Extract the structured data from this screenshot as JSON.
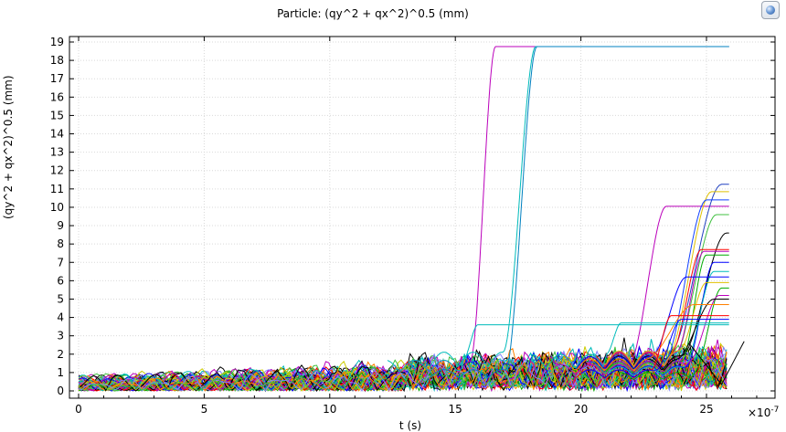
{
  "chart_data": {
    "type": "line",
    "title": "Particle: (qy^2 + qx^2)^0.5 (mm)",
    "xlabel": "t (s)",
    "ylabel": "(qy^2 + qx^2)^0.5 (mm)",
    "x_multiplier_label": "×10",
    "x_multiplier_exponent": "-7",
    "xlim": [
      0,
      27.5
    ],
    "ylim": [
      0,
      19
    ],
    "xticks": [
      0,
      5,
      10,
      15,
      20,
      25
    ],
    "yticks": [
      0,
      1,
      2,
      3,
      4,
      5,
      6,
      7,
      8,
      9,
      10,
      11,
      12,
      13,
      14,
      15,
      16,
      17,
      18,
      19
    ],
    "grid": true,
    "legend": "none",
    "series_count_note": "many particle trajectories",
    "colors": [
      "#0000ff",
      "#00aa00",
      "#ff0000",
      "#00bbbb",
      "#bb00bb",
      "#cccc00",
      "#000000",
      "#ff8000",
      "#8080ff",
      "#40c040"
    ],
    "escape_curves": [
      {
        "color": "#bb00bb",
        "rise_start": 15.6,
        "rise_end": 16.6,
        "final": 18.75
      },
      {
        "color": "#00bbbb",
        "rise_start": 16.9,
        "rise_end": 18.2,
        "final": 18.75
      },
      {
        "color": "#0080c0",
        "rise_start": 17.0,
        "rise_end": 18.25,
        "final": 18.75
      },
      {
        "color": "#bb00bb",
        "rise_start": 21.9,
        "rise_end": 23.4,
        "final": 10.05
      },
      {
        "color": "#2040c0",
        "rise_start": 23.5,
        "rise_end": 25.6,
        "final": 11.25
      },
      {
        "color": "#e0c000",
        "rise_start": 23.4,
        "rise_end": 25.2,
        "final": 10.85
      },
      {
        "color": "#1040ff",
        "rise_start": 23.3,
        "rise_end": 25.0,
        "final": 10.4
      },
      {
        "color": "#40c040",
        "rise_start": 23.6,
        "rise_end": 25.4,
        "final": 9.6
      },
      {
        "color": "#000000",
        "rise_start": 24.0,
        "rise_end": 25.8,
        "final": 8.6
      },
      {
        "color": "#ff0000",
        "rise_start": 23.6,
        "rise_end": 24.8,
        "final": 7.7
      },
      {
        "color": "#bb00bb",
        "rise_start": 23.8,
        "rise_end": 24.9,
        "final": 7.6
      },
      {
        "color": "#00aa00",
        "rise_start": 24.0,
        "rise_end": 25.0,
        "final": 7.4
      },
      {
        "color": "#0000ff",
        "rise_start": 24.2,
        "rise_end": 25.3,
        "final": 7.0
      },
      {
        "color": "#00bbbb",
        "rise_start": 24.1,
        "rise_end": 25.3,
        "final": 6.5
      },
      {
        "color": "#0000ff",
        "rise_start": 22.8,
        "rise_end": 24.2,
        "final": 6.2
      },
      {
        "color": "#e0c000",
        "rise_start": 23.9,
        "rise_end": 25.0,
        "final": 5.9
      },
      {
        "color": "#00aa00",
        "rise_start": 24.5,
        "rise_end": 25.6,
        "final": 5.6
      },
      {
        "color": "#bb00bb",
        "rise_start": 24.3,
        "rise_end": 25.5,
        "final": 5.2
      },
      {
        "color": "#000000",
        "rise_start": 23.8,
        "rise_end": 25.3,
        "final": 5.0
      },
      {
        "color": "#ff8000",
        "rise_start": 22.6,
        "rise_end": 24.5,
        "final": 4.7
      },
      {
        "color": "#00bbbb",
        "rise_start": 15.3,
        "rise_end": 15.9,
        "final": 3.6
      },
      {
        "color": "#00bbbb",
        "rise_start": 21.0,
        "rise_end": 21.6,
        "final": 3.7
      },
      {
        "color": "#ff0000",
        "rise_start": 22.8,
        "rise_end": 23.6,
        "final": 4.1
      },
      {
        "color": "#0000ff",
        "rise_start": 23.0,
        "rise_end": 24.0,
        "final": 3.9
      }
    ]
  }
}
